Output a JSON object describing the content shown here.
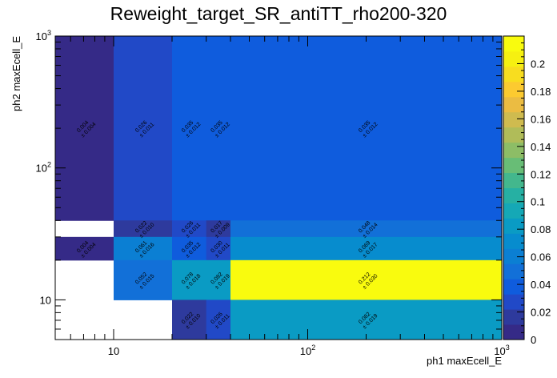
{
  "chart_data": {
    "type": "heatmap",
    "title": "Reweight_target_SR_antiTT_rho200-320",
    "xlabel": "ph1 maxEcell_E",
    "ylabel": "ph2 maxEcell_E",
    "xscale": "log",
    "yscale": "log",
    "xlim": [
      5,
      1000
    ],
    "ylim": [
      5,
      1000
    ],
    "x_edges": [
      5,
      10,
      20,
      30,
      40,
      1000
    ],
    "y_edges": [
      5,
      10,
      20,
      30,
      40,
      1000
    ],
    "x_tick_labels": [
      {
        "value": 10,
        "base": "10",
        "exp": ""
      },
      {
        "value": 100,
        "base": "10",
        "exp": "2"
      },
      {
        "value": 1000,
        "base": "10",
        "exp": "3"
      }
    ],
    "y_tick_labels": [
      {
        "value": 10,
        "base": "10",
        "exp": ""
      },
      {
        "value": 100,
        "base": "10",
        "exp": "2"
      },
      {
        "value": 1000,
        "base": "10",
        "exp": "3"
      }
    ],
    "cells": [
      {
        "x": [
          5,
          10
        ],
        "y": [
          40,
          1000
        ],
        "value": 0.004,
        "label": "0.004",
        "err": "± 0.004"
      },
      {
        "x": [
          10,
          20
        ],
        "y": [
          40,
          1000
        ],
        "value": 0.026,
        "label": "0.026",
        "err": "± 0.011"
      },
      {
        "x": [
          20,
          30
        ],
        "y": [
          40,
          1000
        ],
        "value": 0.035,
        "label": "0.035",
        "err": "± 0.012"
      },
      {
        "x": [
          30,
          40
        ],
        "y": [
          40,
          1000
        ],
        "value": 0.035,
        "label": "0.035",
        "err": "± 0.012"
      },
      {
        "x": [
          40,
          1000
        ],
        "y": [
          40,
          1000
        ],
        "value": 0.035,
        "label": "0.035",
        "err": "± 0.012"
      },
      {
        "x": [
          10,
          20
        ],
        "y": [
          30,
          40
        ],
        "value": 0.022,
        "label": "0.022",
        "err": "± 0.010"
      },
      {
        "x": [
          20,
          30
        ],
        "y": [
          30,
          40
        ],
        "value": 0.026,
        "label": "0.026",
        "err": "± 0.011"
      },
      {
        "x": [
          30,
          40
        ],
        "y": [
          30,
          40
        ],
        "value": 0.017,
        "label": "0.017",
        "err": "± 0.009"
      },
      {
        "x": [
          40,
          1000
        ],
        "y": [
          30,
          40
        ],
        "value": 0.048,
        "label": "0.048",
        "err": "± 0.014"
      },
      {
        "x": [
          5,
          10
        ],
        "y": [
          20,
          30
        ],
        "value": 0.004,
        "label": "0.004",
        "err": "± 0.004"
      },
      {
        "x": [
          10,
          20
        ],
        "y": [
          20,
          30
        ],
        "value": 0.061,
        "label": "0.061",
        "err": "± 0.016"
      },
      {
        "x": [
          20,
          30
        ],
        "y": [
          20,
          30
        ],
        "value": 0.035,
        "label": "0.035",
        "err": "± 0.012"
      },
      {
        "x": [
          30,
          40
        ],
        "y": [
          20,
          30
        ],
        "value": 0.03,
        "label": "0.030",
        "err": "± 0.011"
      },
      {
        "x": [
          40,
          1000
        ],
        "y": [
          20,
          30
        ],
        "value": 0.069,
        "label": "0.069",
        "err": "± 0.017"
      },
      {
        "x": [
          10,
          20
        ],
        "y": [
          10,
          20
        ],
        "value": 0.052,
        "label": "0.052",
        "err": "± 0.015"
      },
      {
        "x": [
          20,
          30
        ],
        "y": [
          10,
          20
        ],
        "value": 0.078,
        "label": "0.078",
        "err": "± 0.018"
      },
      {
        "x": [
          30,
          40
        ],
        "y": [
          10,
          20
        ],
        "value": 0.082,
        "label": "0.082",
        "err": "± 0.019"
      },
      {
        "x": [
          40,
          1000
        ],
        "y": [
          10,
          20
        ],
        "value": 0.212,
        "label": "0.212",
        "err": "± 0.030"
      },
      {
        "x": [
          20,
          30
        ],
        "y": [
          5,
          10
        ],
        "value": 0.022,
        "label": "0.022",
        "err": "± 0.010"
      },
      {
        "x": [
          30,
          40
        ],
        "y": [
          5,
          10
        ],
        "value": 0.026,
        "label": "0.026",
        "err": "± 0.011"
      },
      {
        "x": [
          40,
          1000
        ],
        "y": [
          5,
          10
        ],
        "value": 0.082,
        "label": "0.082",
        "err": "± 0.019"
      }
    ],
    "colorbar": {
      "min": 0,
      "max": 0.22,
      "ticks": [
        "0",
        "0.02",
        "0.04",
        "0.06",
        "0.08",
        "0.1",
        "0.12",
        "0.14",
        "0.16",
        "0.18",
        "0.2"
      ],
      "tick_values": [
        0,
        0.02,
        0.04,
        0.06,
        0.08,
        0.1,
        0.12,
        0.14,
        0.16,
        0.18,
        0.2
      ],
      "palette": [
        "#352a87",
        "#2e3a9d",
        "#2149c7",
        "#0f5cdd",
        "#1270d8",
        "#0b7fd3",
        "#078cce",
        "#0a9bc4",
        "#15a8b6",
        "#26b0a3",
        "#43b78d",
        "#68bd76",
        "#8dbd66",
        "#b0bc59",
        "#cfbb4f",
        "#ebbc42",
        "#fcca30",
        "#f8dd1f",
        "#f6f011",
        "#f9fb0e"
      ]
    },
    "grid": false
  }
}
